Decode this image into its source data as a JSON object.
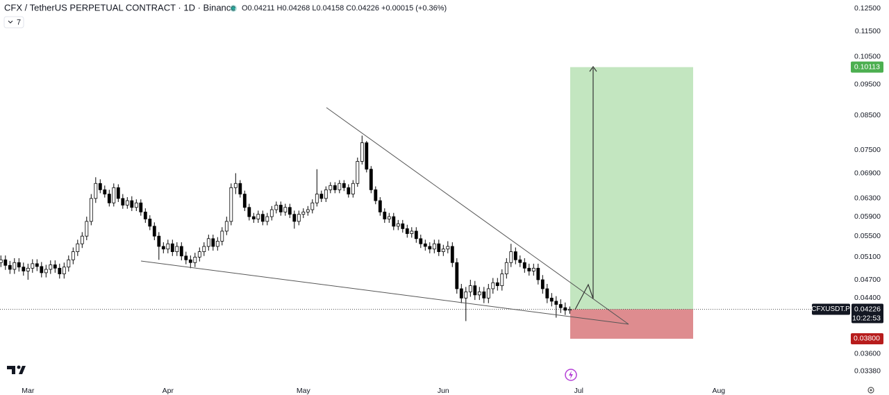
{
  "chart_data": {
    "type": "candlestick",
    "title": "CFX / TetherUS PERPETUAL CONTRACT · 1D · Binance",
    "ohlc_legend": "O0.04211 H0.04268 L0.04158 C0.04226 +0.00015 (+0.36%)",
    "indicator_count": "7",
    "symbol": "CFXUSDT.P",
    "last_price": {
      "value": 0.04226,
      "label": "0.04226"
    },
    "countdown": "10:22:53",
    "target": {
      "value": 0.10113,
      "label": "0.10113"
    },
    "stop": {
      "value": 0.038,
      "label": "0.03800"
    },
    "target_color": "#c3e6c0",
    "stop_color": "#de8c8f",
    "up_color": "#ffffff",
    "down_color": "#000000",
    "log_y": true,
    "x": [
      -6,
      -5,
      -4,
      -3,
      -2,
      -1,
      0,
      1,
      2,
      3,
      4,
      5,
      6,
      7,
      8,
      9,
      10,
      11,
      12,
      13,
      14,
      15,
      16,
      17,
      18,
      19,
      20,
      21,
      22,
      23,
      24,
      25,
      26,
      27,
      28,
      29,
      30,
      31,
      32,
      33,
      34,
      35,
      36,
      37,
      38,
      39,
      40,
      41,
      42,
      43,
      44,
      45,
      46,
      47,
      48,
      49,
      50,
      51,
      52,
      53,
      54,
      55,
      56,
      57,
      58,
      59,
      60,
      61,
      62,
      63,
      64,
      65,
      66,
      67,
      68,
      69,
      70,
      71,
      72,
      73,
      74,
      75,
      76,
      77,
      78,
      79,
      80,
      81,
      82,
      83,
      84,
      85,
      86,
      87,
      88,
      89,
      90,
      91,
      92,
      93,
      94,
      95,
      96,
      97,
      98,
      99,
      100,
      101,
      102,
      103,
      104,
      105,
      106,
      107,
      108,
      109,
      110,
      111,
      112,
      113,
      114,
      115,
      116,
      117,
      118,
      119,
      120
    ],
    "open": [
      0.05,
      0.0505,
      0.0495,
      0.0488,
      0.05,
      0.0492,
      0.0485,
      0.049,
      0.0498,
      0.0493,
      0.0482,
      0.0488,
      0.0496,
      0.049,
      0.048,
      0.0492,
      0.0505,
      0.052,
      0.0535,
      0.055,
      0.058,
      0.063,
      0.0665,
      0.065,
      0.064,
      0.062,
      0.0655,
      0.063,
      0.0615,
      0.0625,
      0.061,
      0.062,
      0.06,
      0.0585,
      0.057,
      0.055,
      0.053,
      0.0525,
      0.0535,
      0.052,
      0.053,
      0.0512,
      0.0505,
      0.05,
      0.051,
      0.052,
      0.053,
      0.0545,
      0.053,
      0.054,
      0.056,
      0.058,
      0.0655,
      0.0665,
      0.064,
      0.061,
      0.059,
      0.0585,
      0.0595,
      0.058,
      0.059,
      0.0605,
      0.0615,
      0.06,
      0.061,
      0.0595,
      0.058,
      0.0595,
      0.06,
      0.0605,
      0.062,
      0.064,
      0.063,
      0.065,
      0.066,
      0.065,
      0.0665,
      0.0655,
      0.064,
      0.0665,
      0.072,
      0.077,
      0.07,
      0.065,
      0.0625,
      0.06,
      0.0585,
      0.059,
      0.057,
      0.0575,
      0.0565,
      0.0555,
      0.056,
      0.0545,
      0.0535,
      0.053,
      0.0525,
      0.0535,
      0.052,
      0.0525,
      0.053,
      0.05,
      0.0455,
      0.044,
      0.045,
      0.046,
      0.0445,
      0.045,
      0.044,
      0.0455,
      0.0465,
      0.046,
      0.048,
      0.05,
      0.052,
      0.0505,
      0.05,
      0.049,
      0.0485,
      0.049,
      0.047,
      0.0455,
      0.044,
      0.0435,
      0.043,
      0.0425,
      0.04211
    ],
    "high": [
      0.0513,
      0.0513,
      0.0503,
      0.0508,
      0.0508,
      0.05,
      0.0498,
      0.0506,
      0.0506,
      0.0501,
      0.0496,
      0.0504,
      0.0504,
      0.0498,
      0.05,
      0.0513,
      0.0528,
      0.0543,
      0.0558,
      0.059,
      0.064,
      0.068,
      0.0675,
      0.066,
      0.065,
      0.0665,
      0.0663,
      0.064,
      0.0633,
      0.0635,
      0.0628,
      0.0628,
      0.0608,
      0.0593,
      0.0578,
      0.0558,
      0.0538,
      0.0543,
      0.0543,
      0.0538,
      0.0538,
      0.052,
      0.0513,
      0.0518,
      0.0528,
      0.0538,
      0.0553,
      0.0553,
      0.0548,
      0.0568,
      0.059,
      0.0665,
      0.069,
      0.0673,
      0.0648,
      0.0618,
      0.0598,
      0.0603,
      0.0603,
      0.0598,
      0.0613,
      0.0623,
      0.0623,
      0.0618,
      0.0618,
      0.0603,
      0.0603,
      0.0608,
      0.0613,
      0.0628,
      0.07,
      0.0648,
      0.0658,
      0.0668,
      0.0668,
      0.0673,
      0.0673,
      0.0663,
      0.0673,
      0.073,
      0.079,
      0.0775,
      0.0708,
      0.0658,
      0.0633,
      0.0608,
      0.0598,
      0.0598,
      0.0583,
      0.0583,
      0.0573,
      0.0568,
      0.0568,
      0.0553,
      0.0543,
      0.0538,
      0.0543,
      0.0543,
      0.0533,
      0.054,
      0.0538,
      0.0508,
      0.0463,
      0.0458,
      0.047,
      0.0468,
      0.0458,
      0.0458,
      0.0463,
      0.0473,
      0.0473,
      0.0488,
      0.0508,
      0.0535,
      0.0528,
      0.0513,
      0.0508,
      0.0498,
      0.0498,
      0.0498,
      0.0478,
      0.0463,
      0.0448,
      0.0443,
      0.0438,
      0.0433,
      0.04268
    ],
    "low": [
      0.0492,
      0.0487,
      0.048,
      0.048,
      0.0484,
      0.0477,
      0.047,
      0.0482,
      0.0485,
      0.0474,
      0.0474,
      0.048,
      0.0482,
      0.0472,
      0.0472,
      0.0484,
      0.0497,
      0.0512,
      0.0527,
      0.0542,
      0.0572,
      0.062,
      0.0642,
      0.0632,
      0.0612,
      0.0612,
      0.0622,
      0.0607,
      0.0607,
      0.0602,
      0.0602,
      0.0592,
      0.0577,
      0.0562,
      0.0542,
      0.0505,
      0.0517,
      0.0517,
      0.0512,
      0.0512,
      0.0504,
      0.0497,
      0.049,
      0.0492,
      0.0502,
      0.0512,
      0.0522,
      0.0522,
      0.0522,
      0.0532,
      0.0552,
      0.0572,
      0.064,
      0.0632,
      0.0602,
      0.0582,
      0.0577,
      0.0577,
      0.0572,
      0.0572,
      0.0582,
      0.0597,
      0.0592,
      0.0592,
      0.0587,
      0.0565,
      0.0572,
      0.0587,
      0.0592,
      0.0597,
      0.0612,
      0.0622,
      0.0622,
      0.0642,
      0.0642,
      0.0642,
      0.0647,
      0.0632,
      0.0632,
      0.0657,
      0.0712,
      0.0692,
      0.0642,
      0.0617,
      0.0592,
      0.0577,
      0.0577,
      0.0562,
      0.0562,
      0.0557,
      0.0547,
      0.0547,
      0.0537,
      0.0527,
      0.0522,
      0.0517,
      0.0517,
      0.0512,
      0.0512,
      0.0517,
      0.0492,
      0.0447,
      0.0432,
      0.0405,
      0.0442,
      0.0437,
      0.0437,
      0.0432,
      0.0432,
      0.0447,
      0.0452,
      0.0452,
      0.0472,
      0.0492,
      0.0497,
      0.0492,
      0.0482,
      0.0477,
      0.0477,
      0.0462,
      0.0447,
      0.0432,
      0.0427,
      0.041,
      0.0417,
      0.0414,
      0.04158
    ],
    "close": [
      0.0505,
      0.0495,
      0.0488,
      0.05,
      0.0492,
      0.0485,
      0.049,
      0.0498,
      0.0493,
      0.0482,
      0.0488,
      0.0496,
      0.049,
      0.048,
      0.0492,
      0.0505,
      0.052,
      0.0535,
      0.055,
      0.058,
      0.063,
      0.0665,
      0.065,
      0.064,
      0.062,
      0.0655,
      0.063,
      0.0615,
      0.0625,
      0.061,
      0.062,
      0.06,
      0.0585,
      0.057,
      0.055,
      0.053,
      0.0525,
      0.0535,
      0.052,
      0.053,
      0.0512,
      0.0505,
      0.05,
      0.051,
      0.052,
      0.053,
      0.0545,
      0.053,
      0.054,
      0.056,
      0.058,
      0.0655,
      0.0665,
      0.064,
      0.061,
      0.059,
      0.0585,
      0.0595,
      0.058,
      0.059,
      0.0605,
      0.0615,
      0.06,
      0.061,
      0.0595,
      0.058,
      0.0595,
      0.06,
      0.0605,
      0.062,
      0.064,
      0.063,
      0.065,
      0.066,
      0.065,
      0.0665,
      0.0655,
      0.064,
      0.0665,
      0.072,
      0.077,
      0.07,
      0.065,
      0.0625,
      0.06,
      0.0585,
      0.059,
      0.057,
      0.0575,
      0.0565,
      0.0555,
      0.056,
      0.0545,
      0.0535,
      0.053,
      0.0525,
      0.0535,
      0.052,
      0.0525,
      0.053,
      0.05,
      0.0455,
      0.044,
      0.045,
      0.046,
      0.0445,
      0.045,
      0.044,
      0.0455,
      0.0465,
      0.046,
      0.048,
      0.05,
      0.052,
      0.0505,
      0.05,
      0.049,
      0.0485,
      0.049,
      0.047,
      0.0455,
      0.044,
      0.0435,
      0.043,
      0.0425,
      0.04211,
      0.04226
    ],
    "xlim": [
      -6.2,
      173.8
    ],
    "xticks": [
      {
        "value": 0,
        "label": "Mar"
      },
      {
        "value": 31,
        "label": "Apr"
      },
      {
        "value": 61,
        "label": "May"
      },
      {
        "value": 92,
        "label": "Jun"
      },
      {
        "value": 122,
        "label": "Jul"
      },
      {
        "value": 153,
        "label": "Aug"
      }
    ],
    "ylim": [
      0.0327,
      0.1288
    ],
    "yticks": [
      {
        "value": 0.125,
        "label": "0.12500"
      },
      {
        "value": 0.115,
        "label": "0.11500"
      },
      {
        "value": 0.105,
        "label": "0.10500"
      },
      {
        "value": 0.095,
        "label": "0.09500"
      },
      {
        "value": 0.085,
        "label": "0.08500"
      },
      {
        "value": 0.075,
        "label": "0.07500"
      },
      {
        "value": 0.069,
        "label": "0.06900"
      },
      {
        "value": 0.063,
        "label": "0.06300"
      },
      {
        "value": 0.059,
        "label": "0.05900"
      },
      {
        "value": 0.055,
        "label": "0.05500"
      },
      {
        "value": 0.051,
        "label": "0.05100"
      },
      {
        "value": 0.047,
        "label": "0.04700"
      },
      {
        "value": 0.044,
        "label": "0.04400"
      },
      {
        "value": 0.036,
        "label": "0.03600"
      },
      {
        "value": 0.0338,
        "label": "0.03380"
      }
    ]
  }
}
